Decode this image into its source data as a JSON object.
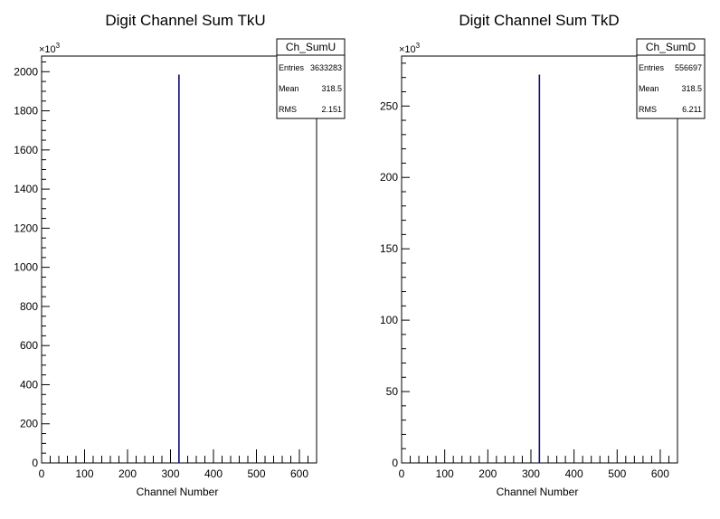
{
  "chart_data": [
    {
      "type": "bar",
      "title": "Digit Channel Sum TkU",
      "xlabel": "Channel Number",
      "ylabel": "",
      "y_multiplier": "×10",
      "y_multiplier_exp": "3",
      "xlim": [
        0,
        640
      ],
      "ylim": [
        0,
        2080
      ],
      "x_major_ticks": [
        0,
        100,
        200,
        300,
        400,
        500,
        600
      ],
      "y_major_ticks": [
        0,
        200,
        400,
        600,
        800,
        1000,
        1200,
        1400,
        1600,
        1800,
        2000
      ],
      "x_minor_step": 20,
      "y_minor_step": 50,
      "bins": [
        {
          "x": 318,
          "width": 2,
          "value": 1985
        }
      ],
      "stats": {
        "name": "Ch_SumU",
        "rows": [
          {
            "label": "Entries",
            "value": "3633283"
          },
          {
            "label": "Mean",
            "value": "318.5"
          },
          {
            "label": "RMS",
            "value": "2.151"
          }
        ]
      }
    },
    {
      "type": "bar",
      "title": "Digit Channel Sum TkD",
      "xlabel": "Channel Number",
      "ylabel": "",
      "y_multiplier": "×10",
      "y_multiplier_exp": "3",
      "xlim": [
        0,
        640
      ],
      "ylim": [
        0,
        285
      ],
      "x_major_ticks": [
        0,
        100,
        200,
        300,
        400,
        500,
        600
      ],
      "y_major_ticks": [
        0,
        50,
        100,
        150,
        200,
        250
      ],
      "x_minor_step": 20,
      "y_minor_step": 10,
      "bins": [
        {
          "x": 318,
          "width": 2,
          "value": 272
        }
      ],
      "stats": {
        "name": "Ch_SumD",
        "rows": [
          {
            "label": "Entries",
            "value": "556697"
          },
          {
            "label": "Mean",
            "value": "318.5"
          },
          {
            "label": "RMS",
            "value": "6.211"
          }
        ]
      }
    }
  ],
  "colors": {
    "bar": "#0b0b7a",
    "axis": "#000000",
    "background": "#ffffff"
  }
}
